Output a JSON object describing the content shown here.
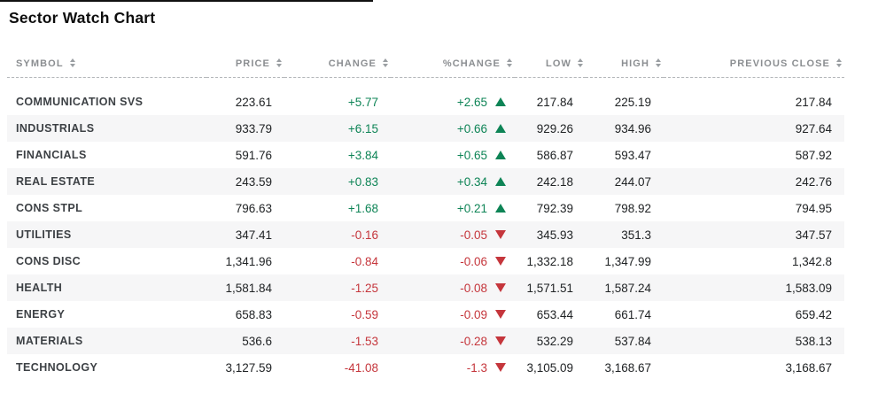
{
  "title": "Sector Watch Chart",
  "colors": {
    "positive": "#0e8456",
    "negative": "#c5363c",
    "header_text": "#8b8e91",
    "row_stripe": "#f6f6f7",
    "top_bar": "#101010"
  },
  "table": {
    "columns": [
      {
        "id": "symbol",
        "label": "SYMBOL",
        "align": "left",
        "sortable": true
      },
      {
        "id": "price",
        "label": "PRICE",
        "align": "right",
        "sortable": true
      },
      {
        "id": "change",
        "label": "CHANGE",
        "align": "right",
        "sortable": true
      },
      {
        "id": "pct_change",
        "label": "%CHANGE",
        "align": "right",
        "sortable": true
      },
      {
        "id": "low",
        "label": "LOW",
        "align": "right",
        "sortable": true
      },
      {
        "id": "high",
        "label": "HIGH",
        "align": "right",
        "sortable": true
      },
      {
        "id": "prev_close",
        "label": "PREVIOUS CLOSE",
        "align": "right",
        "sortable": true
      }
    ],
    "rows": [
      {
        "symbol": "COMMUNICATION SVS",
        "price": "223.61",
        "change": "+5.77",
        "pct_change": "+2.65",
        "direction": "up",
        "low": "217.84",
        "high": "225.19",
        "prev_close": "217.84"
      },
      {
        "symbol": "INDUSTRIALS",
        "price": "933.79",
        "change": "+6.15",
        "pct_change": "+0.66",
        "direction": "up",
        "low": "929.26",
        "high": "934.96",
        "prev_close": "927.64"
      },
      {
        "symbol": "FINANCIALS",
        "price": "591.76",
        "change": "+3.84",
        "pct_change": "+0.65",
        "direction": "up",
        "low": "586.87",
        "high": "593.47",
        "prev_close": "587.92"
      },
      {
        "symbol": "REAL ESTATE",
        "price": "243.59",
        "change": "+0.83",
        "pct_change": "+0.34",
        "direction": "up",
        "low": "242.18",
        "high": "244.07",
        "prev_close": "242.76"
      },
      {
        "symbol": "CONS STPL",
        "price": "796.63",
        "change": "+1.68",
        "pct_change": "+0.21",
        "direction": "up",
        "low": "792.39",
        "high": "798.92",
        "prev_close": "794.95"
      },
      {
        "symbol": "UTILITIES",
        "price": "347.41",
        "change": "-0.16",
        "pct_change": "-0.05",
        "direction": "down",
        "low": "345.93",
        "high": "351.3",
        "prev_close": "347.57"
      },
      {
        "symbol": "CONS DISC",
        "price": "1,341.96",
        "change": "-0.84",
        "pct_change": "-0.06",
        "direction": "down",
        "low": "1,332.18",
        "high": "1,347.99",
        "prev_close": "1,342.8"
      },
      {
        "symbol": "HEALTH",
        "price": "1,581.84",
        "change": "-1.25",
        "pct_change": "-0.08",
        "direction": "down",
        "low": "1,571.51",
        "high": "1,587.24",
        "prev_close": "1,583.09"
      },
      {
        "symbol": "ENERGY",
        "price": "658.83",
        "change": "-0.59",
        "pct_change": "-0.09",
        "direction": "down",
        "low": "653.44",
        "high": "661.74",
        "prev_close": "659.42"
      },
      {
        "symbol": "MATERIALS",
        "price": "536.6",
        "change": "-1.53",
        "pct_change": "-0.28",
        "direction": "down",
        "low": "532.29",
        "high": "537.84",
        "prev_close": "538.13"
      },
      {
        "symbol": "TECHNOLOGY",
        "price": "3,127.59",
        "change": "-41.08",
        "pct_change": "-1.3",
        "direction": "down",
        "low": "3,105.09",
        "high": "3,168.67",
        "prev_close": "3,168.67"
      }
    ]
  }
}
